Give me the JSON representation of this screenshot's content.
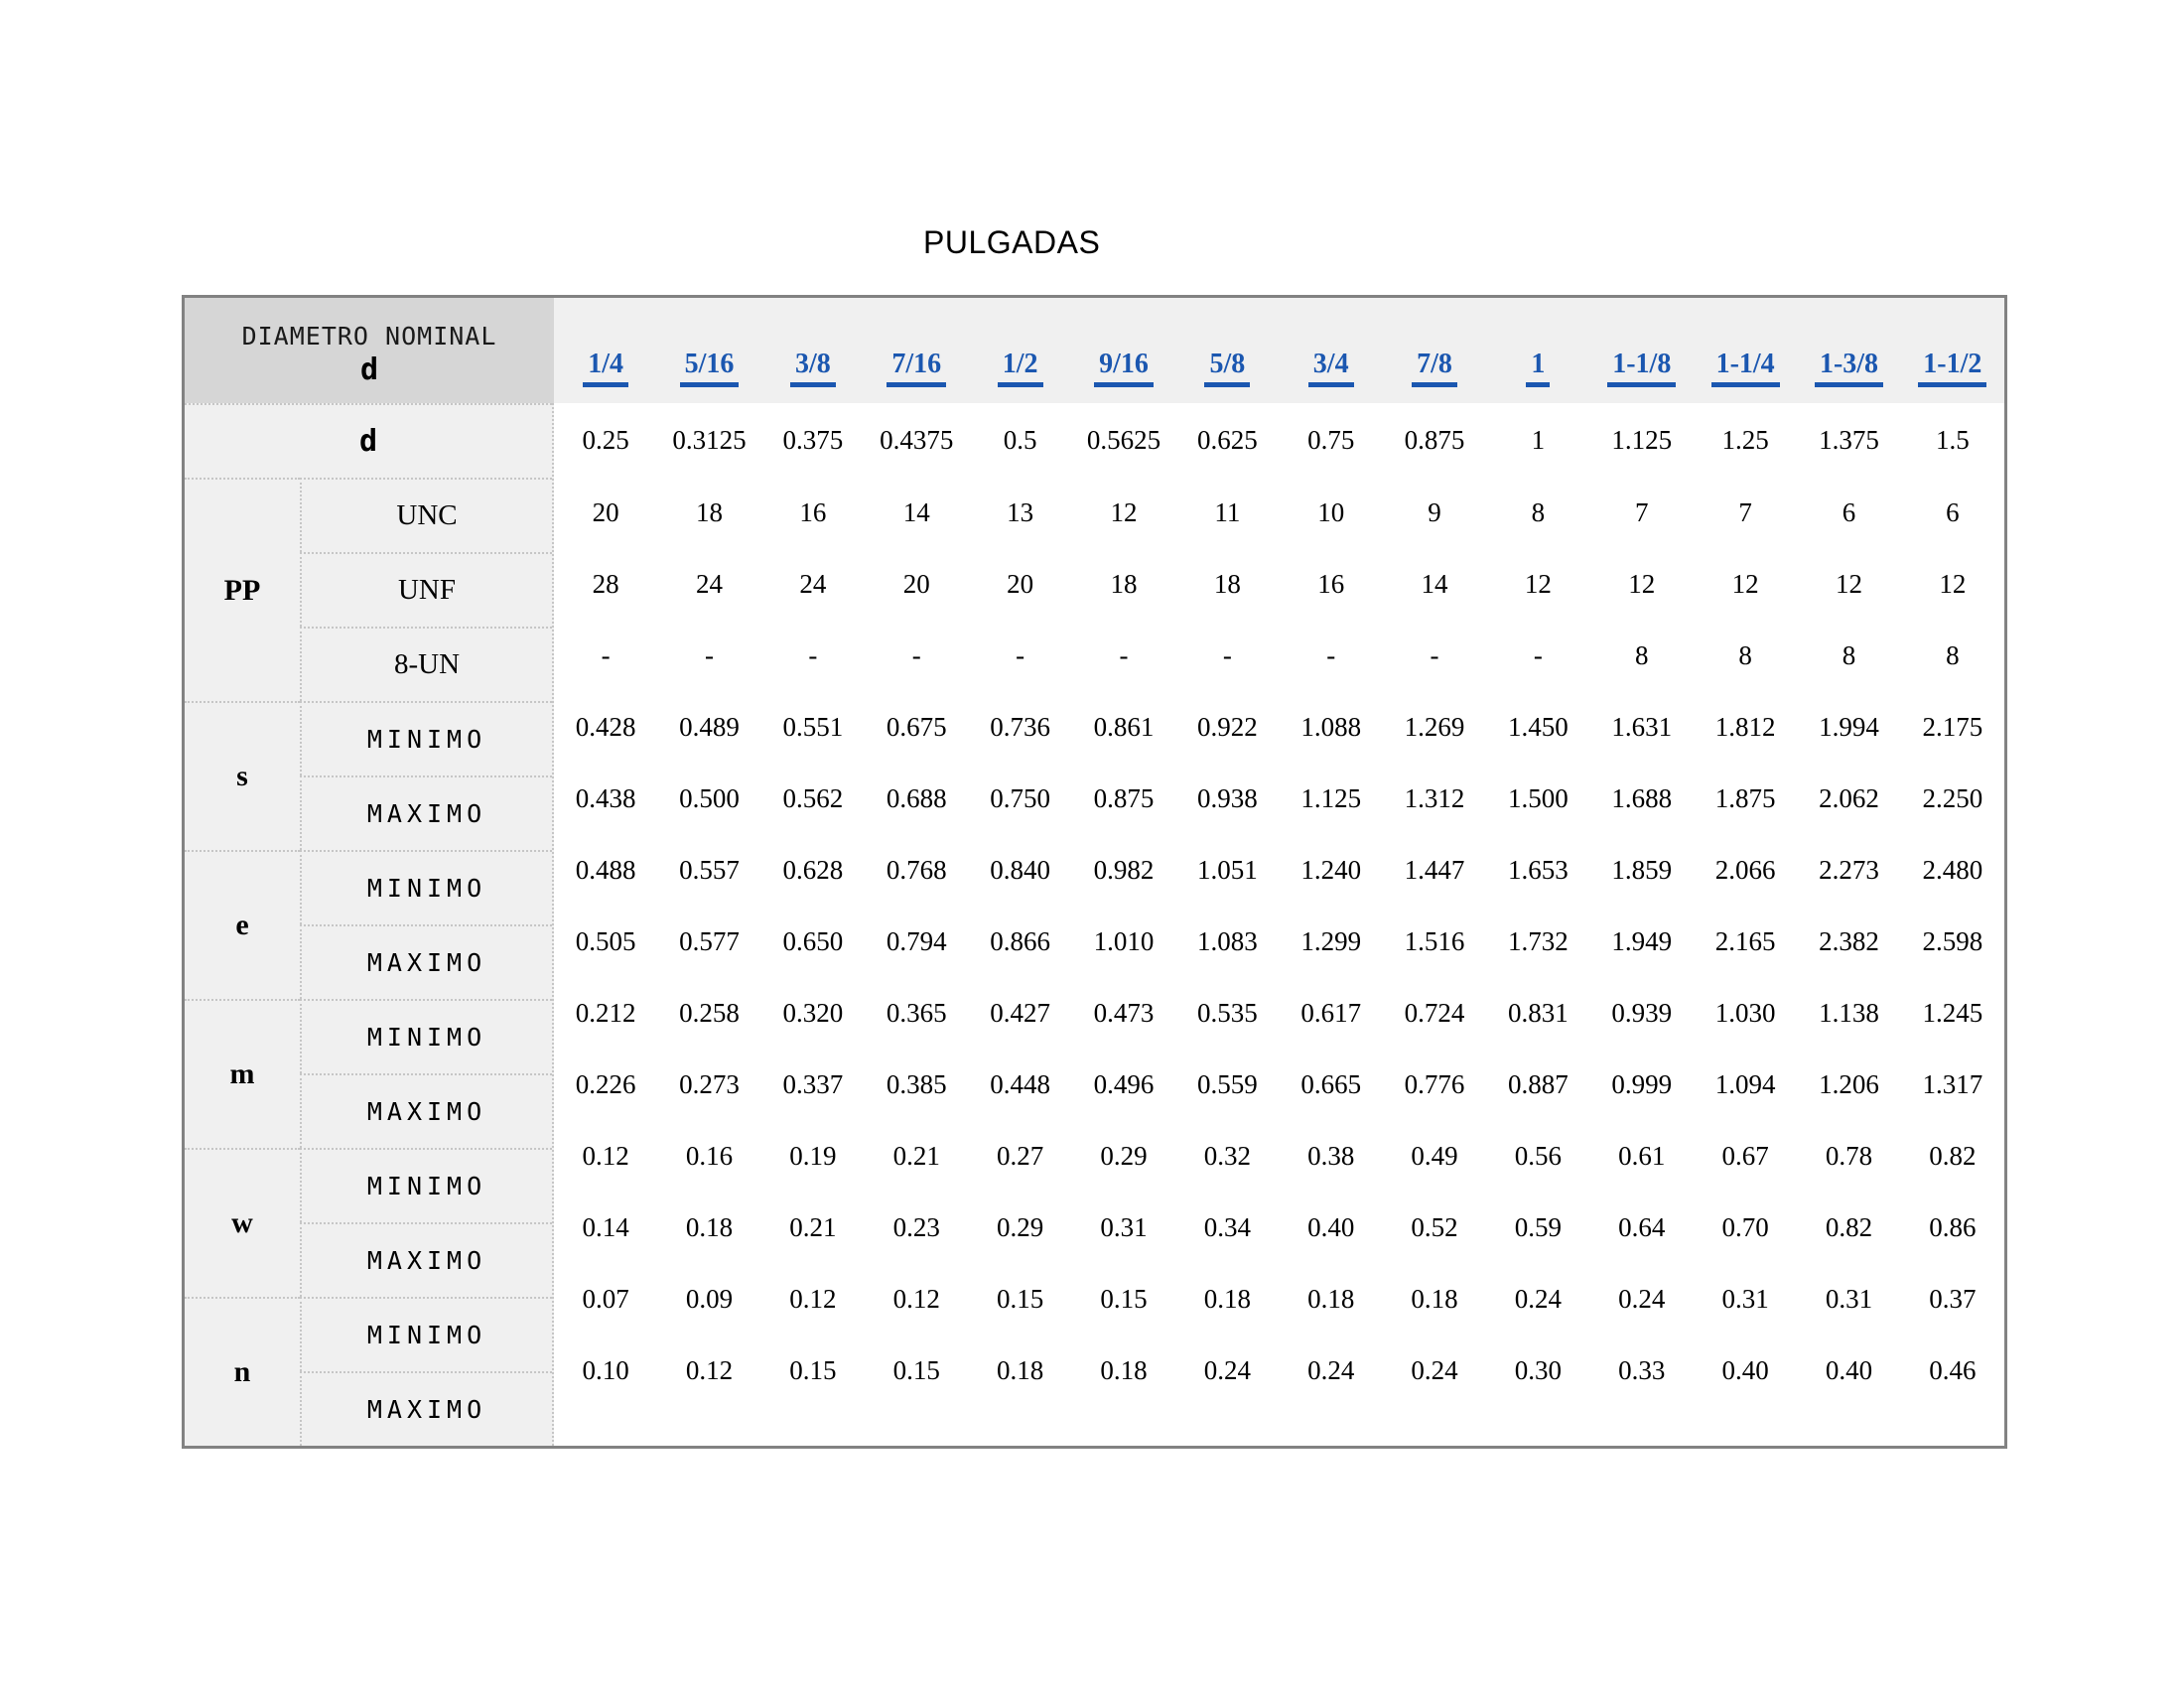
{
  "title": "PULGADAS",
  "colors": {
    "link_blue": "#1b57b0",
    "corner_header_bg": "#d6d6d6",
    "label_bg": "#f0f0f0",
    "outer_border": "#828282",
    "dotted_border": "#c6c6c6"
  },
  "table": {
    "corner_title": "DIAMETRO NOMINAL",
    "corner_subtitle": "d",
    "columns": [
      "1/4",
      "5/16",
      "3/8",
      "7/16",
      "1/2",
      "9/16",
      "5/8",
      "3/4",
      "7/8",
      "1",
      "1-1/8",
      "1-1/4",
      "1-3/8",
      "1-1/2"
    ],
    "groups": [
      {
        "name": "d",
        "rows": [
          {
            "label": "",
            "values": [
              "0.25",
              "0.3125",
              "0.375",
              "0.4375",
              "0.5",
              "0.5625",
              "0.625",
              "0.75",
              "0.875",
              "1",
              "1.125",
              "1.25",
              "1.375",
              "1.5"
            ]
          }
        ]
      },
      {
        "name": "PP",
        "rows": [
          {
            "label": "UNC",
            "values": [
              "20",
              "18",
              "16",
              "14",
              "13",
              "12",
              "11",
              "10",
              "9",
              "8",
              "7",
              "7",
              "6",
              "6"
            ]
          },
          {
            "label": "UNF",
            "values": [
              "28",
              "24",
              "24",
              "20",
              "20",
              "18",
              "18",
              "16",
              "14",
              "12",
              "12",
              "12",
              "12",
              "12"
            ]
          },
          {
            "label": "8-UN",
            "values": [
              "-",
              "-",
              "-",
              "-",
              "-",
              "-",
              "-",
              "-",
              "-",
              "-",
              "8",
              "8",
              "8",
              "8"
            ]
          }
        ]
      },
      {
        "name": "s",
        "rows": [
          {
            "label": "MINIMO",
            "values": [
              "0.428",
              "0.489",
              "0.551",
              "0.675",
              "0.736",
              "0.861",
              "0.922",
              "1.088",
              "1.269",
              "1.450",
              "1.631",
              "1.812",
              "1.994",
              "2.175"
            ]
          },
          {
            "label": "MAXIMO",
            "values": [
              "0.438",
              "0.500",
              "0.562",
              "0.688",
              "0.750",
              "0.875",
              "0.938",
              "1.125",
              "1.312",
              "1.500",
              "1.688",
              "1.875",
              "2.062",
              "2.250"
            ]
          }
        ]
      },
      {
        "name": "e",
        "rows": [
          {
            "label": "MINIMO",
            "values": [
              "0.488",
              "0.557",
              "0.628",
              "0.768",
              "0.840",
              "0.982",
              "1.051",
              "1.240",
              "1.447",
              "1.653",
              "1.859",
              "2.066",
              "2.273",
              "2.480"
            ]
          },
          {
            "label": "MAXIMO",
            "values": [
              "0.505",
              "0.577",
              "0.650",
              "0.794",
              "0.866",
              "1.010",
              "1.083",
              "1.299",
              "1.516",
              "1.732",
              "1.949",
              "2.165",
              "2.382",
              "2.598"
            ]
          }
        ]
      },
      {
        "name": "m",
        "rows": [
          {
            "label": "MINIMO",
            "values": [
              "0.212",
              "0.258",
              "0.320",
              "0.365",
              "0.427",
              "0.473",
              "0.535",
              "0.617",
              "0.724",
              "0.831",
              "0.939",
              "1.030",
              "1.138",
              "1.245"
            ]
          },
          {
            "label": "MAXIMO",
            "values": [
              "0.226",
              "0.273",
              "0.337",
              "0.385",
              "0.448",
              "0.496",
              "0.559",
              "0.665",
              "0.776",
              "0.887",
              "0.999",
              "1.094",
              "1.206",
              "1.317"
            ]
          }
        ]
      },
      {
        "name": "w",
        "rows": [
          {
            "label": "MINIMO",
            "values": [
              "0.12",
              "0.16",
              "0.19",
              "0.21",
              "0.27",
              "0.29",
              "0.32",
              "0.38",
              "0.49",
              "0.56",
              "0.61",
              "0.67",
              "0.78",
              "0.82"
            ]
          },
          {
            "label": "MAXIMO",
            "values": [
              "0.14",
              "0.18",
              "0.21",
              "0.23",
              "0.29",
              "0.31",
              "0.34",
              "0.40",
              "0.52",
              "0.59",
              "0.64",
              "0.70",
              "0.82",
              "0.86"
            ]
          }
        ]
      },
      {
        "name": "n",
        "rows": [
          {
            "label": "MINIMO",
            "values": [
              "0.07",
              "0.09",
              "0.12",
              "0.12",
              "0.15",
              "0.15",
              "0.18",
              "0.18",
              "0.18",
              "0.24",
              "0.24",
              "0.31",
              "0.31",
              "0.37"
            ]
          },
          {
            "label": "MAXIMO",
            "values": [
              "0.10",
              "0.12",
              "0.15",
              "0.15",
              "0.18",
              "0.18",
              "0.24",
              "0.24",
              "0.24",
              "0.30",
              "0.33",
              "0.40",
              "0.40",
              "0.46"
            ]
          }
        ]
      }
    ]
  }
}
